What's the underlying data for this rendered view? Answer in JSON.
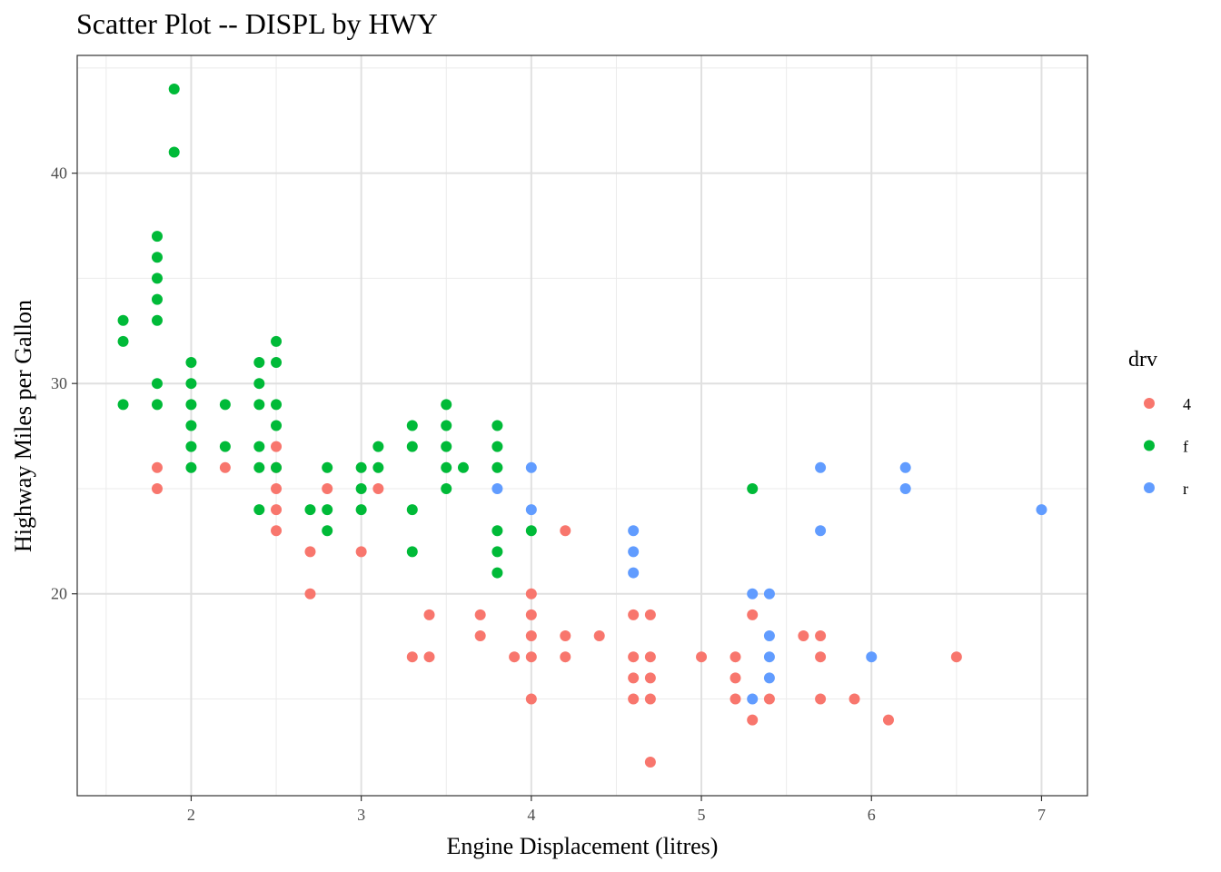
{
  "chart_data": {
    "type": "scatter",
    "title": "Scatter Plot -- DISPL by HWY",
    "xlabel": "Engine Displacement (litres)",
    "ylabel": "Highway Miles per Gallon",
    "xlim": [
      1.33,
      7.27
    ],
    "ylim": [
      10.4,
      45.6
    ],
    "x_ticks": [
      2,
      3,
      4,
      5,
      6,
      7
    ],
    "y_ticks": [
      20,
      30,
      40
    ],
    "x_tick_labels": [
      "2",
      "3",
      "4",
      "5",
      "6",
      "7"
    ],
    "y_tick_labels": [
      "20",
      "30",
      "40"
    ],
    "grid": true,
    "legend": {
      "title": "drv",
      "position": "right",
      "entries": [
        {
          "label": "4",
          "color": "#F8766D"
        },
        {
          "label": "f",
          "color": "#00BA38"
        },
        {
          "label": "r",
          "color": "#619CFF"
        }
      ]
    },
    "series": [
      {
        "name": "4",
        "color": "#F8766D",
        "points": [
          [
            1.8,
            26
          ],
          [
            1.8,
            25
          ],
          [
            2.2,
            26
          ],
          [
            2.5,
            27
          ],
          [
            2.5,
            26
          ],
          [
            2.5,
            25
          ],
          [
            2.5,
            24
          ],
          [
            2.5,
            23
          ],
          [
            2.7,
            22
          ],
          [
            2.7,
            20
          ],
          [
            2.8,
            25
          ],
          [
            3.0,
            22
          ],
          [
            3.1,
            25
          ],
          [
            3.3,
            17
          ],
          [
            3.4,
            19
          ],
          [
            3.4,
            17
          ],
          [
            3.7,
            19
          ],
          [
            3.7,
            18
          ],
          [
            3.9,
            17
          ],
          [
            4.0,
            20
          ],
          [
            4.0,
            19
          ],
          [
            4.0,
            18
          ],
          [
            4.0,
            17
          ],
          [
            4.0,
            15
          ],
          [
            4.2,
            23
          ],
          [
            4.2,
            18
          ],
          [
            4.2,
            17
          ],
          [
            4.4,
            18
          ],
          [
            4.6,
            19
          ],
          [
            4.6,
            17
          ],
          [
            4.6,
            16
          ],
          [
            4.6,
            15
          ],
          [
            4.7,
            19
          ],
          [
            4.7,
            17
          ],
          [
            4.7,
            16
          ],
          [
            4.7,
            15
          ],
          [
            4.7,
            12
          ],
          [
            5.0,
            17
          ],
          [
            5.2,
            17
          ],
          [
            5.2,
            16
          ],
          [
            5.2,
            15
          ],
          [
            5.3,
            19
          ],
          [
            5.3,
            14
          ],
          [
            5.4,
            15
          ],
          [
            5.6,
            18
          ],
          [
            5.7,
            18
          ],
          [
            5.7,
            17
          ],
          [
            5.7,
            15
          ],
          [
            5.9,
            15
          ],
          [
            6.1,
            14
          ],
          [
            6.5,
            17
          ]
        ]
      },
      {
        "name": "f",
        "color": "#00BA38",
        "points": [
          [
            1.6,
            33
          ],
          [
            1.6,
            32
          ],
          [
            1.6,
            29
          ],
          [
            1.8,
            37
          ],
          [
            1.8,
            36
          ],
          [
            1.8,
            35
          ],
          [
            1.8,
            34
          ],
          [
            1.8,
            33
          ],
          [
            1.8,
            30
          ],
          [
            1.8,
            29
          ],
          [
            1.9,
            44
          ],
          [
            1.9,
            41
          ],
          [
            2.0,
            31
          ],
          [
            2.0,
            30
          ],
          [
            2.0,
            29
          ],
          [
            2.0,
            28
          ],
          [
            2.0,
            27
          ],
          [
            2.0,
            26
          ],
          [
            2.2,
            29
          ],
          [
            2.2,
            27
          ],
          [
            2.4,
            31
          ],
          [
            2.4,
            30
          ],
          [
            2.4,
            29
          ],
          [
            2.4,
            27
          ],
          [
            2.4,
            26
          ],
          [
            2.4,
            24
          ],
          [
            2.5,
            32
          ],
          [
            2.5,
            31
          ],
          [
            2.5,
            29
          ],
          [
            2.5,
            28
          ],
          [
            2.5,
            26
          ],
          [
            2.7,
            24
          ],
          [
            2.8,
            26
          ],
          [
            2.8,
            24
          ],
          [
            2.8,
            23
          ],
          [
            3.0,
            26
          ],
          [
            3.0,
            25
          ],
          [
            3.0,
            24
          ],
          [
            3.1,
            27
          ],
          [
            3.1,
            26
          ],
          [
            3.3,
            28
          ],
          [
            3.3,
            27
          ],
          [
            3.3,
            24
          ],
          [
            3.3,
            22
          ],
          [
            3.5,
            29
          ],
          [
            3.5,
            28
          ],
          [
            3.5,
            27
          ],
          [
            3.5,
            26
          ],
          [
            3.5,
            25
          ],
          [
            3.6,
            26
          ],
          [
            3.8,
            28
          ],
          [
            3.8,
            27
          ],
          [
            3.8,
            26
          ],
          [
            3.8,
            23
          ],
          [
            3.8,
            22
          ],
          [
            3.8,
            21
          ],
          [
            4.0,
            23
          ],
          [
            5.3,
            25
          ]
        ]
      },
      {
        "name": "r",
        "color": "#619CFF",
        "points": [
          [
            3.8,
            25
          ],
          [
            4.0,
            26
          ],
          [
            4.0,
            24
          ],
          [
            4.6,
            23
          ],
          [
            4.6,
            22
          ],
          [
            4.6,
            21
          ],
          [
            5.3,
            20
          ],
          [
            5.3,
            15
          ],
          [
            5.4,
            20
          ],
          [
            5.4,
            18
          ],
          [
            5.4,
            17
          ],
          [
            5.4,
            16
          ],
          [
            5.7,
            26
          ],
          [
            5.7,
            23
          ],
          [
            6.0,
            17
          ],
          [
            6.2,
            26
          ],
          [
            6.2,
            25
          ],
          [
            7.0,
            24
          ]
        ]
      }
    ]
  }
}
